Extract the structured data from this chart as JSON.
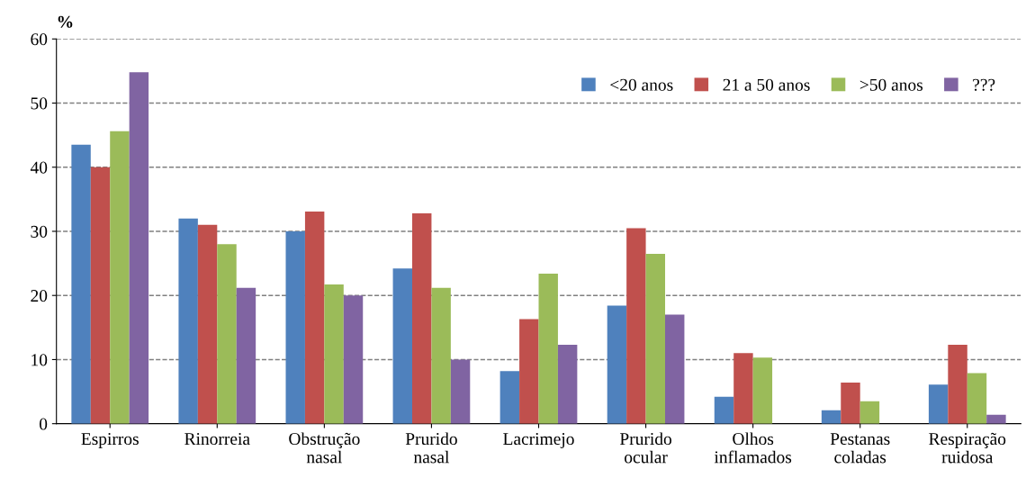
{
  "chart_data": {
    "type": "bar",
    "ylabel": "%",
    "categories": [
      "Espirros",
      "Rinorreia",
      "Obstrução\nnasal",
      "Prurido\nnasal",
      "Lacrimejo",
      "Prurido\nocular",
      "Olhos\ninflamados",
      "Pestanas\ncoladas",
      "Respiração\nruidosa"
    ],
    "series": [
      {
        "name": "<20 anos",
        "color": "#4f81bd",
        "values": [
          43.5,
          32,
          30,
          24.2,
          8.2,
          18.4,
          4.2,
          2.1,
          6.1
        ]
      },
      {
        "name": "21 a 50 anos",
        "color": "#c0504d",
        "values": [
          40,
          31,
          33.1,
          32.8,
          16.3,
          30.5,
          11,
          6.4,
          12.3
        ]
      },
      {
        "name": ">50 anos",
        "color": "#9bbb59",
        "values": [
          45.6,
          28,
          21.7,
          21.2,
          23.4,
          26.5,
          10.3,
          3.5,
          7.9
        ]
      },
      {
        "name": "???",
        "color": "#8064a2",
        "values": [
          54.8,
          21.2,
          20,
          10,
          12.3,
          17,
          null,
          null,
          1.4
        ]
      }
    ],
    "ylim": [
      0,
      60
    ],
    "yticks": [
      0,
      10,
      20,
      30,
      40,
      50,
      60
    ],
    "grid": "y",
    "legend": "top right"
  }
}
